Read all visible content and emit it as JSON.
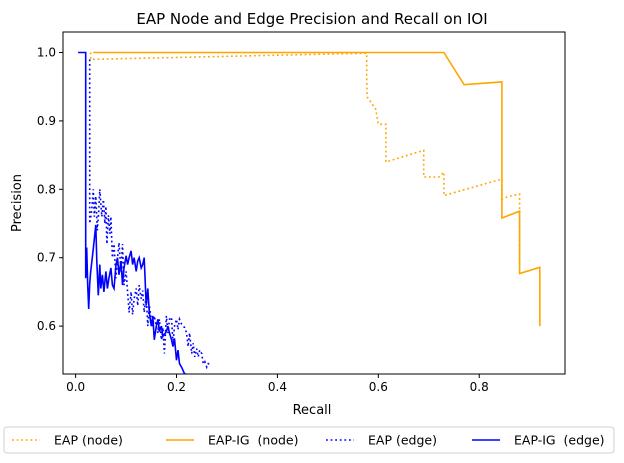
{
  "chart_data": {
    "type": "line",
    "title": "EAP Node and Edge Precision and Recall on IOI",
    "xlabel": "Recall",
    "ylabel": "Precision",
    "xlim": [
      -0.025,
      0.97
    ],
    "ylim": [
      0.53,
      1.03
    ],
    "xticks": [
      0.0,
      0.2,
      0.4,
      0.6,
      0.8
    ],
    "yticks": [
      0.6,
      0.7,
      0.8,
      0.9,
      1.0
    ],
    "xtick_labels": [
      "0.0",
      "0.2",
      "0.4",
      "0.6",
      "0.8"
    ],
    "ytick_labels": [
      "0.6",
      "0.7",
      "0.8",
      "0.9",
      "1.0"
    ],
    "grid": false,
    "legend_position": "bottom, outside plot",
    "series": [
      {
        "name": "EAP (node)",
        "color": "#FFA500",
        "style": "dotted",
        "x": [
          0.03,
          0.03,
          0.577,
          0.577,
          0.578,
          0.595,
          0.6,
          0.615,
          0.615,
          0.69,
          0.69,
          0.72,
          0.73,
          0.73,
          0.845,
          0.845,
          0.86,
          0.88,
          0.88
        ],
        "y": [
          1.0,
          0.99,
          0.999,
          0.96,
          0.935,
          0.917,
          0.895,
          0.895,
          0.84,
          0.857,
          0.818,
          0.818,
          0.825,
          0.791,
          0.815,
          0.786,
          0.79,
          0.793,
          0.69
        ]
      },
      {
        "name": "EAP-IG  (node)",
        "color": "#FFA500",
        "style": "solid",
        "x": [
          0.035,
          0.73,
          0.77,
          0.845,
          0.845,
          0.88,
          0.88,
          0.92,
          0.92
        ],
        "y": [
          1.0,
          1.0,
          0.953,
          0.957,
          0.758,
          0.768,
          0.677,
          0.686,
          0.6
        ]
      },
      {
        "name": "EAP (edge)",
        "color": "#0000FF",
        "style": "dotted",
        "x": [
          0.028,
          0.028,
          0.032,
          0.035,
          0.037,
          0.04,
          0.043,
          0.046,
          0.048,
          0.052,
          0.055,
          0.058,
          0.06,
          0.062,
          0.065,
          0.068,
          0.07,
          0.073,
          0.076,
          0.08,
          0.083,
          0.086,
          0.09,
          0.093,
          0.096,
          0.1,
          0.103,
          0.106,
          0.11,
          0.113,
          0.116,
          0.12,
          0.123,
          0.126,
          0.13,
          0.133,
          0.136,
          0.14,
          0.143,
          0.146,
          0.15,
          0.153,
          0.156,
          0.16,
          0.163,
          0.166,
          0.17,
          0.173,
          0.176,
          0.18,
          0.183,
          0.186,
          0.19,
          0.193,
          0.196,
          0.2,
          0.203,
          0.206,
          0.21,
          0.213,
          0.216,
          0.22,
          0.223,
          0.226,
          0.23,
          0.233,
          0.236,
          0.24,
          0.243,
          0.246,
          0.25,
          0.253,
          0.256,
          0.26,
          0.263,
          0.266
        ],
        "y": [
          0.99,
          0.75,
          0.77,
          0.8,
          0.76,
          0.79,
          0.74,
          0.77,
          0.8,
          0.76,
          0.785,
          0.75,
          0.775,
          0.72,
          0.762,
          0.735,
          0.76,
          0.7,
          0.72,
          0.67,
          0.7,
          0.722,
          0.68,
          0.72,
          0.66,
          0.68,
          0.65,
          0.62,
          0.65,
          0.617,
          0.64,
          0.655,
          0.63,
          0.66,
          0.64,
          0.652,
          0.62,
          0.645,
          0.6,
          0.63,
          0.61,
          0.6,
          0.615,
          0.6,
          0.59,
          0.61,
          0.58,
          0.598,
          0.56,
          0.615,
          0.59,
          0.61,
          0.613,
          0.575,
          0.6,
          0.61,
          0.595,
          0.61,
          0.603,
          0.6,
          0.598,
          0.59,
          0.57,
          0.59,
          0.56,
          0.575,
          0.555,
          0.567,
          0.555,
          0.565,
          0.56,
          0.545,
          0.548,
          0.54,
          0.545,
          0.545
        ]
      },
      {
        "name": "EAP-IG  (edge)",
        "color": "#0000FF",
        "style": "solid",
        "x": [
          0.005,
          0.02,
          0.02,
          0.022,
          0.024,
          0.026,
          0.028,
          0.03,
          0.033,
          0.036,
          0.04,
          0.042,
          0.045,
          0.048,
          0.05,
          0.053,
          0.056,
          0.06,
          0.063,
          0.066,
          0.07,
          0.073,
          0.076,
          0.08,
          0.083,
          0.086,
          0.09,
          0.093,
          0.096,
          0.1,
          0.103,
          0.106,
          0.11,
          0.113,
          0.116,
          0.12,
          0.123,
          0.126,
          0.13,
          0.133,
          0.136,
          0.14,
          0.143,
          0.146,
          0.15,
          0.153,
          0.156,
          0.16,
          0.163,
          0.166,
          0.17,
          0.173,
          0.176,
          0.18,
          0.183,
          0.186,
          0.19,
          0.193,
          0.196,
          0.2,
          0.203,
          0.206,
          0.21,
          0.213,
          0.216,
          0.22
        ],
        "y": [
          1.0,
          1.0,
          0.67,
          0.715,
          0.66,
          0.625,
          0.662,
          0.68,
          0.7,
          0.72,
          0.748,
          0.695,
          0.645,
          0.69,
          0.655,
          0.675,
          0.65,
          0.68,
          0.655,
          0.67,
          0.685,
          0.66,
          0.655,
          0.69,
          0.7,
          0.675,
          0.695,
          0.66,
          0.685,
          0.703,
          0.69,
          0.7,
          0.71,
          0.69,
          0.7,
          0.68,
          0.695,
          0.7,
          0.685,
          0.69,
          0.7,
          0.63,
          0.655,
          0.62,
          0.6,
          0.615,
          0.58,
          0.6,
          0.61,
          0.592,
          0.6,
          0.585,
          0.588,
          0.592,
          0.6,
          0.59,
          0.58,
          0.57,
          0.582,
          0.55,
          0.565,
          0.545,
          0.54,
          0.535,
          0.53,
          0.53
        ]
      }
    ]
  }
}
